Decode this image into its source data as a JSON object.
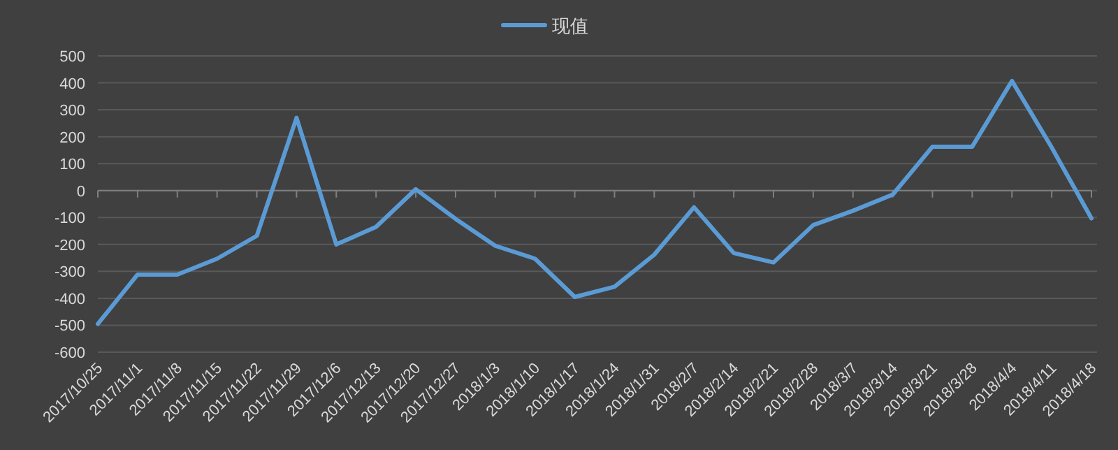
{
  "chart_data": {
    "type": "line",
    "categories": [
      "2017/10/25",
      "2017/11/1",
      "2017/11/8",
      "2017/11/15",
      "2017/11/22",
      "2017/11/29",
      "2017/12/6",
      "2017/12/13",
      "2017/12/20",
      "2017/12/27",
      "2018/1/3",
      "2018/1/10",
      "2018/1/17",
      "2018/1/24",
      "2018/1/31",
      "2018/2/7",
      "2018/2/14",
      "2018/2/21",
      "2018/2/28",
      "2018/3/7",
      "2018/3/14",
      "2018/3/21",
      "2018/3/28",
      "2018/4/4",
      "2018/4/11",
      "2018/4/18"
    ],
    "series": [
      {
        "name": "现值",
        "color": "#5b9bd5",
        "values": [
          -495,
          -312,
          -312,
          -253,
          -168,
          270,
          -200,
          -135,
          5,
          -105,
          -205,
          -253,
          -395,
          -357,
          -238,
          -62,
          -232,
          -267,
          -128,
          -75,
          -15,
          163,
          163,
          407,
          160,
          -103
        ]
      }
    ],
    "ylim": [
      -600,
      500
    ],
    "yticks": [
      -600,
      -500,
      -400,
      -300,
      -200,
      -100,
      0,
      100,
      200,
      300,
      400,
      500
    ],
    "grid": "y",
    "legend": "top",
    "marker": "none",
    "line_style": "solid"
  }
}
